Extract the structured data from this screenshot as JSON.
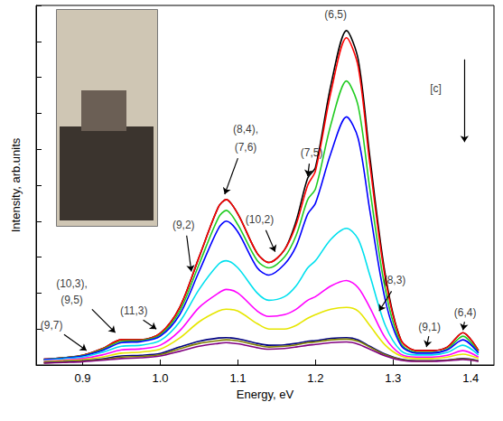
{
  "chart_data": {
    "type": "line",
    "xlabel": "Energy, eV",
    "ylabel": "Intensity, arb.units",
    "xlim": [
      0.84,
      1.43
    ],
    "ylim": [
      0,
      1
    ],
    "xticks": [
      0.9,
      {
        "value": 1,
        "label": "1.0"
      },
      1.1,
      1.2,
      1.3,
      1.4
    ],
    "yticks": [
      0,
      0.1,
      0.2,
      0.3,
      0.4,
      0.5,
      0.6,
      0.7,
      0.8,
      0.9,
      1
    ],
    "tick_labels": "x",
    "grid": false,
    "x": [
      0.85,
      0.875,
      0.9,
      0.925,
      0.95,
      0.975,
      1.0,
      1.025,
      1.05,
      1.075,
      1.085,
      1.1,
      1.125,
      1.14,
      1.16,
      1.175,
      1.19,
      1.2,
      1.22,
      1.24,
      1.255,
      1.27,
      1.29,
      1.31,
      1.33,
      1.35,
      1.37,
      1.39,
      1.41
    ],
    "series": [
      {
        "color": "#000000",
        "values": [
          0.016,
          0.02,
          0.027,
          0.045,
          0.07,
          0.07,
          0.088,
          0.16,
          0.3,
          0.44,
          0.46,
          0.42,
          0.31,
          0.285,
          0.32,
          0.4,
          0.52,
          0.55,
          0.78,
          0.93,
          0.85,
          0.58,
          0.25,
          0.07,
          0.04,
          0.04,
          0.05,
          0.09,
          0.04
        ]
      },
      {
        "color": "#ff0000",
        "values": [
          0.016,
          0.02,
          0.027,
          0.045,
          0.07,
          0.07,
          0.088,
          0.16,
          0.3,
          0.44,
          0.46,
          0.42,
          0.31,
          0.285,
          0.32,
          0.39,
          0.5,
          0.54,
          0.76,
          0.91,
          0.83,
          0.56,
          0.24,
          0.07,
          0.04,
          0.04,
          0.05,
          0.09,
          0.04
        ]
      },
      {
        "color": "#22cc22",
        "values": [
          0.015,
          0.02,
          0.026,
          0.043,
          0.066,
          0.068,
          0.084,
          0.15,
          0.28,
          0.41,
          0.43,
          0.39,
          0.29,
          0.27,
          0.3,
          0.36,
          0.46,
          0.49,
          0.67,
          0.79,
          0.72,
          0.49,
          0.21,
          0.06,
          0.035,
          0.035,
          0.045,
          0.08,
          0.035
        ]
      },
      {
        "color": "#0000ff",
        "values": [
          0.015,
          0.019,
          0.025,
          0.04,
          0.062,
          0.065,
          0.08,
          0.14,
          0.26,
          0.38,
          0.4,
          0.37,
          0.27,
          0.25,
          0.28,
          0.33,
          0.42,
          0.45,
          0.59,
          0.69,
          0.63,
          0.43,
          0.18,
          0.055,
          0.033,
          0.033,
          0.042,
          0.07,
          0.033
        ]
      },
      {
        "color": "#00e0ee",
        "values": [
          0.013,
          0.017,
          0.022,
          0.035,
          0.052,
          0.055,
          0.068,
          0.12,
          0.21,
          0.28,
          0.29,
          0.27,
          0.2,
          0.18,
          0.19,
          0.22,
          0.27,
          0.29,
          0.35,
          0.38,
          0.35,
          0.25,
          0.11,
          0.04,
          0.028,
          0.028,
          0.035,
          0.055,
          0.028
        ]
      },
      {
        "color": "#ff00ff",
        "values": [
          0.011,
          0.014,
          0.018,
          0.028,
          0.042,
          0.045,
          0.055,
          0.095,
          0.16,
          0.2,
          0.21,
          0.2,
          0.15,
          0.135,
          0.14,
          0.155,
          0.18,
          0.19,
          0.22,
          0.235,
          0.215,
          0.16,
          0.075,
          0.03,
          0.022,
          0.022,
          0.027,
          0.04,
          0.022
        ]
      },
      {
        "color": "#e6e600",
        "values": [
          0.009,
          0.012,
          0.015,
          0.022,
          0.033,
          0.036,
          0.044,
          0.075,
          0.12,
          0.15,
          0.155,
          0.15,
          0.115,
          0.1,
          0.1,
          0.11,
          0.13,
          0.14,
          0.155,
          0.16,
          0.15,
          0.11,
          0.055,
          0.025,
          0.018,
          0.018,
          0.022,
          0.03,
          0.018
        ]
      },
      {
        "color": "#000080",
        "values": [
          0.007,
          0.009,
          0.012,
          0.017,
          0.025,
          0.027,
          0.032,
          0.05,
          0.066,
          0.075,
          0.076,
          0.073,
          0.06,
          0.055,
          0.056,
          0.06,
          0.066,
          0.068,
          0.074,
          0.076,
          0.07,
          0.052,
          0.03,
          0.016,
          0.012,
          0.012,
          0.014,
          0.018,
          0.012
        ]
      },
      {
        "color": "#808000",
        "values": [
          0.006,
          0.008,
          0.011,
          0.015,
          0.022,
          0.024,
          0.029,
          0.045,
          0.06,
          0.068,
          0.07,
          0.067,
          0.055,
          0.05,
          0.052,
          0.056,
          0.062,
          0.064,
          0.07,
          0.072,
          0.066,
          0.05,
          0.028,
          0.015,
          0.011,
          0.011,
          0.013,
          0.017,
          0.011
        ]
      },
      {
        "color": "#800080",
        "values": [
          0.005,
          0.007,
          0.009,
          0.013,
          0.018,
          0.02,
          0.025,
          0.038,
          0.052,
          0.06,
          0.062,
          0.059,
          0.048,
          0.044,
          0.046,
          0.05,
          0.055,
          0.057,
          0.062,
          0.064,
          0.058,
          0.044,
          0.025,
          0.013,
          0.01,
          0.01,
          0.012,
          0.015,
          0.01
        ]
      }
    ],
    "annotations": [
      {
        "text": "(6,5)",
        "x": 1.226,
        "y": 0.975
      },
      {
        "text": "(7,5)",
        "x": 1.195,
        "y": 0.59,
        "arrow": [
          [
            1.192,
            0.56
          ],
          [
            1.19,
            0.525
          ]
        ]
      },
      {
        "text": "(8,4),",
        "x": 1.11,
        "y": 0.655
      },
      {
        "text": "(7,6)",
        "x": 1.11,
        "y": 0.605,
        "arrow": [
          [
            1.1,
            0.575
          ],
          [
            1.083,
            0.475
          ]
        ]
      },
      {
        "text": "(10,2)",
        "x": 1.128,
        "y": 0.405,
        "arrow": [
          [
            1.136,
            0.375
          ],
          [
            1.148,
            0.315
          ]
        ]
      },
      {
        "text": "(9,2)",
        "x": 1.03,
        "y": 0.39,
        "arrow": [
          [
            1.034,
            0.36
          ],
          [
            1.04,
            0.26
          ]
        ]
      },
      {
        "text": "(10,3),",
        "x": 0.886,
        "y": 0.225
      },
      {
        "text": "(9,5)",
        "x": 0.886,
        "y": 0.18,
        "arrow": [
          [
            0.912,
            0.155
          ],
          [
            0.942,
            0.09
          ]
        ]
      },
      {
        "text": "(11,3)",
        "x": 0.966,
        "y": 0.15,
        "arrow": [
          [
            0.978,
            0.125
          ],
          [
            0.995,
            0.1
          ]
        ]
      },
      {
        "text": "(9,7)",
        "x": 0.86,
        "y": 0.11,
        "arrow": [
          [
            0.876,
            0.085
          ],
          [
            0.905,
            0.04
          ]
        ]
      },
      {
        "text": "(8,3)",
        "x": 1.302,
        "y": 0.235,
        "arrow": [
          [
            1.298,
            0.205
          ],
          [
            1.282,
            0.15
          ]
        ]
      },
      {
        "text": "(9,1)",
        "x": 1.347,
        "y": 0.105,
        "arrow": [
          [
            1.346,
            0.08
          ],
          [
            1.343,
            0.05
          ]
        ]
      },
      {
        "text": "(6,4)",
        "x": 1.393,
        "y": 0.145,
        "arrow": [
          [
            1.392,
            0.12
          ],
          [
            1.39,
            0.097
          ]
        ]
      },
      {
        "text": "[c]",
        "x": 1.355,
        "y": 0.77,
        "arrow": [
          [
            1.392,
            0.85
          ],
          [
            1.392,
            0.62
          ]
        ]
      }
    ]
  }
}
